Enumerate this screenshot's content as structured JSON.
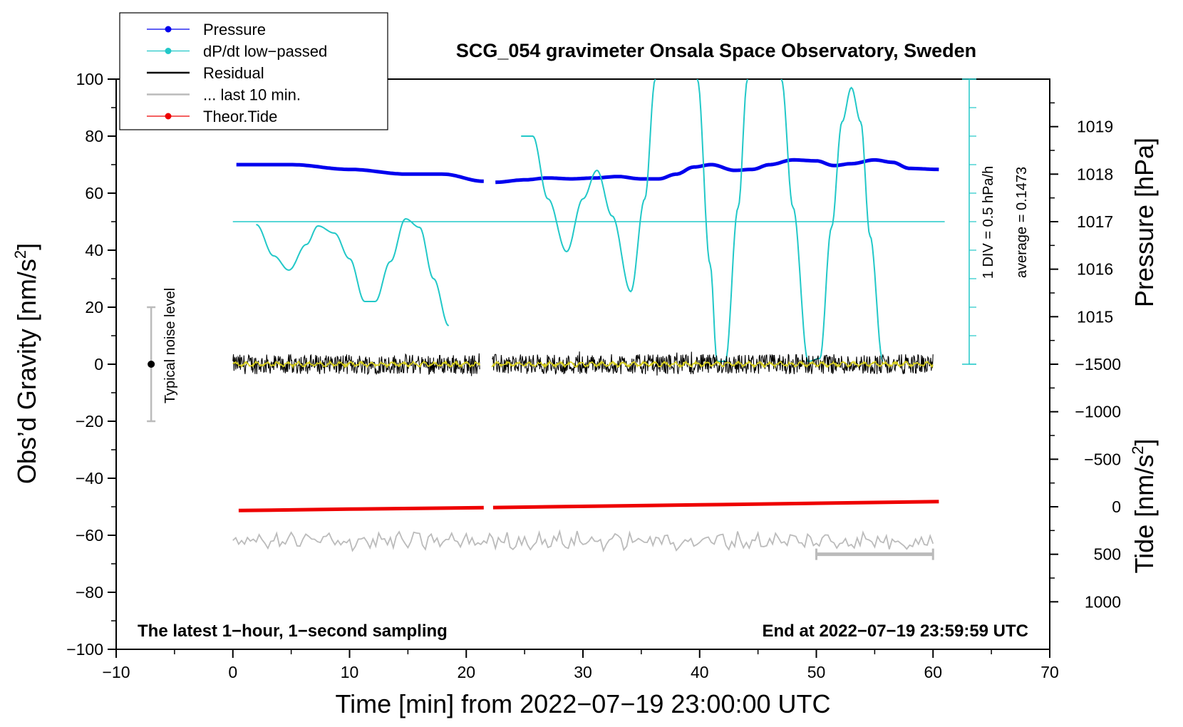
{
  "chart_data": {
    "type": "line",
    "title": "SCG_054 gravimeter Onsala Space Observatory, Sweden",
    "xlabel": "Time [min] from 2022−07−19 23:00:00 UTC",
    "ylabel": "Obs’d Gravity [nm/s",
    "ylabel_sup": "2",
    "ylabel_end": "]",
    "y2_pressure_label": "Pressure [hPa]",
    "y2_tide_label": "Tide [nm/s",
    "y2_tide_sup": "2",
    "y2_tide_end": "]",
    "xlim": [
      -10,
      70
    ],
    "ylim": [
      -100,
      100
    ],
    "x_ticks": [
      "−10",
      "0",
      "10",
      "20",
      "30",
      "40",
      "50",
      "60",
      "70"
    ],
    "y_ticks": [
      "−100",
      "−80",
      "−60",
      "−40",
      "−20",
      "0",
      "20",
      "40",
      "60",
      "80",
      "100"
    ],
    "pressure_ticks": [
      "1015",
      "1016",
      "1017",
      "1018",
      "1019"
    ],
    "tide_ticks": [
      "−1500",
      "−1000",
      "−500",
      "0",
      "500",
      "1000"
    ],
    "legend": [
      {
        "label": "Pressure",
        "color": "#0000ee",
        "marker": true
      },
      {
        "label": "dP/dt low−passed",
        "color": "#22c8c8",
        "marker": true
      },
      {
        "label": "Residual",
        "color": "#000000",
        "marker": false
      },
      {
        "label": "... last 10 min.",
        "color": "#bbbbbb",
        "marker": false
      },
      {
        "label": "Theor.Tide",
        "color": "#ee0000",
        "marker": true
      }
    ],
    "annotations": {
      "bottom_left": "The latest 1−hour, 1−second sampling",
      "bottom_right": "End at 2022−07−19 23:59:59 UTC",
      "noise_label": "Typical noise level",
      "div_note": "1 DIV = 0.5 hPa/h",
      "average_note": "average = 0.1473"
    },
    "series": [
      {
        "name": "Pressure",
        "axis": "pressure_hPa",
        "color": "#0000ee",
        "points": [
          [
            0.3,
            1018.2
          ],
          [
            5,
            1018.2
          ],
          [
            10,
            1018.1
          ],
          [
            15,
            1018.0
          ],
          [
            18,
            1018.0
          ],
          [
            21.5,
            1017.85
          ],
          null,
          [
            22.5,
            1017.83
          ],
          [
            25,
            1017.88
          ],
          [
            27,
            1017.92
          ],
          [
            29,
            1017.9
          ],
          [
            31,
            1017.92
          ],
          [
            33,
            1017.95
          ],
          [
            35,
            1017.9
          ],
          [
            36.5,
            1017.9
          ],
          [
            38,
            1018.0
          ],
          [
            39.5,
            1018.15
          ],
          [
            41,
            1018.2
          ],
          [
            43,
            1018.08
          ],
          [
            44.5,
            1018.1
          ],
          [
            46,
            1018.2
          ],
          [
            48,
            1018.3
          ],
          [
            50,
            1018.28
          ],
          [
            51.5,
            1018.18
          ],
          [
            53,
            1018.22
          ],
          [
            55,
            1018.3
          ],
          [
            56.5,
            1018.25
          ],
          [
            58,
            1018.12
          ],
          [
            60.5,
            1018.1
          ]
        ]
      },
      {
        "name": "dP/dt low-passed",
        "axis": "gravity_units",
        "color": "#22c8c8",
        "points": [
          [
            2,
            49
          ],
          [
            3.5,
            38
          ],
          [
            4.8,
            33
          ],
          [
            6.3,
            42
          ],
          [
            7.3,
            48.5
          ],
          [
            8.7,
            46
          ],
          [
            10,
            37
          ],
          [
            11.3,
            22
          ],
          [
            12.2,
            22
          ],
          [
            13.5,
            36
          ],
          [
            14.8,
            51
          ],
          [
            16,
            48
          ],
          [
            17.2,
            30
          ],
          [
            18.5,
            13.5
          ],
          null,
          [
            24.7,
            80
          ],
          [
            25.7,
            80
          ],
          [
            27,
            58
          ],
          [
            28.6,
            39.5
          ],
          [
            30,
            58
          ],
          [
            31.2,
            68
          ],
          [
            32.5,
            52
          ],
          [
            34.1,
            25.5
          ],
          [
            35.3,
            58
          ],
          [
            36.2,
            100
          ],
          null,
          [
            39.8,
            100
          ],
          [
            40.9,
            35
          ],
          [
            41.5,
            1
          ],
          [
            42.2,
            1
          ],
          [
            43.3,
            55
          ],
          [
            44.1,
            100
          ],
          null,
          [
            47,
            100
          ],
          [
            48,
            55
          ],
          [
            49.3,
            1
          ],
          [
            50.3,
            2
          ],
          [
            51.3,
            48
          ],
          [
            52.2,
            85
          ],
          [
            53,
            97
          ],
          [
            53.8,
            85
          ],
          [
            54.6,
            45
          ],
          [
            55.7,
            1
          ]
        ]
      },
      {
        "name": "Average dP/dt",
        "axis": "gravity_units",
        "color": "#22c8c8",
        "points": [
          [
            0,
            50
          ],
          [
            61,
            50
          ]
        ]
      },
      {
        "name": "Residual",
        "axis": "gravity_units",
        "color": "#000000",
        "segments": [
          [
            0,
            21.2
          ],
          [
            22.2,
            60
          ]
        ],
        "center": 0,
        "amplitude": 3.5
      },
      {
        "name": "... last 10 min.",
        "axis": "gravity_units",
        "color": "#bbbbbb",
        "segments": [
          [
            0,
            60
          ]
        ],
        "center": -62,
        "amplitude": 3
      },
      {
        "name": "Theor.Tide",
        "axis": "tide_nm_s2",
        "color": "#ee0000",
        "points": [
          [
            0.5,
            40
          ],
          [
            10,
            25
          ],
          [
            21.5,
            10
          ],
          null,
          [
            22.3,
            8
          ],
          [
            40,
            -20
          ],
          [
            60.5,
            -55
          ]
        ]
      }
    ],
    "noise_bar": {
      "x": -7,
      "low": -20,
      "high": 20,
      "center": 0
    },
    "last_10min_marker": {
      "x_start": 50,
      "x_end": 60,
      "tide_value": 500
    }
  }
}
